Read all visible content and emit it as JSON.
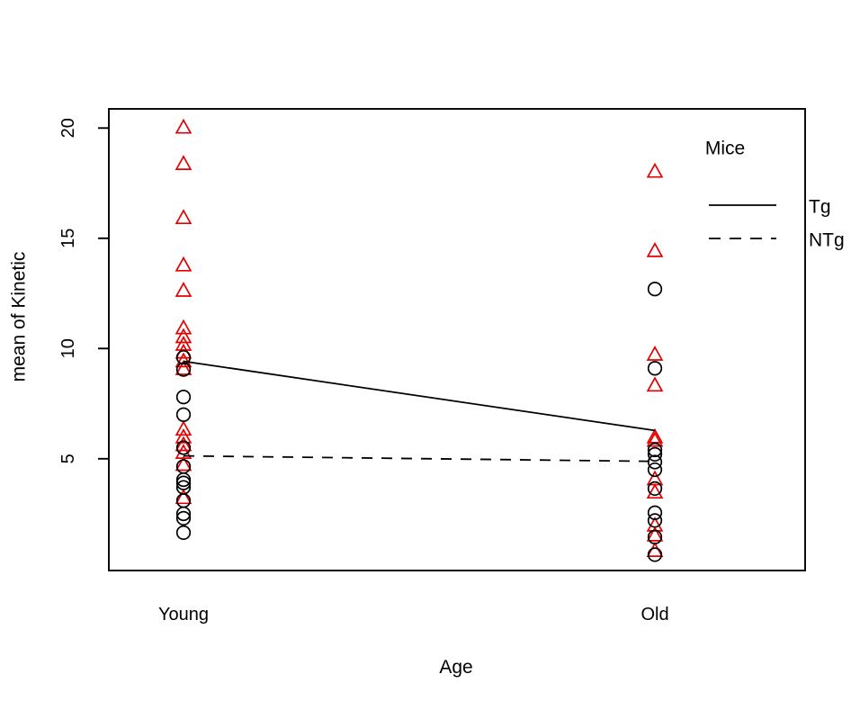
{
  "figure": {
    "background_color": "#ffffff",
    "axis_color": "#000000",
    "accent_color": "#e60000"
  },
  "chart_data": {
    "type": "scatter",
    "subtype": "interaction-plot",
    "title": "",
    "xlabel": "Age",
    "ylabel": "mean of Kinetic",
    "categories": [
      "Young",
      "Old"
    ],
    "yticks": [
      5,
      10,
      15,
      20
    ],
    "ylim": [
      -0.07,
      20.87
    ],
    "grid": false,
    "legend": {
      "title": "Mice",
      "position": "top-right",
      "entries": [
        {
          "label": "Tg",
          "line_style": "solid"
        },
        {
          "label": "NTg",
          "line_style": "dashed"
        }
      ]
    },
    "series": [
      {
        "name": "Tg",
        "marker": "triangle",
        "marker_color": "#e60000",
        "line_color": "#000000",
        "line_style": "solid",
        "means": [
          9.42,
          6.28
        ],
        "points": {
          "Young": [
            20.0,
            18.35,
            15.9,
            13.75,
            12.6,
            10.9,
            10.5,
            10.15,
            9.8,
            9.4,
            9.05,
            6.3,
            5.95,
            5.6,
            5.25,
            4.7,
            3.2
          ],
          "Old": [
            18.0,
            14.4,
            9.7,
            8.3,
            5.95,
            5.8,
            4.05,
            3.45,
            1.95,
            1.5,
            0.8
          ]
        }
      },
      {
        "name": "NTg",
        "marker": "circle",
        "marker_color": "#000000",
        "line_color": "#000000",
        "line_style": "dashed",
        "means": [
          5.13,
          4.88
        ],
        "points": {
          "Young": [
            9.6,
            9.05,
            7.8,
            7.0,
            5.5,
            4.65,
            4.05,
            3.9,
            3.7,
            3.1,
            2.5,
            2.3,
            1.65
          ],
          "Old": [
            12.7,
            9.1,
            5.4,
            5.2,
            4.85,
            4.5,
            3.65,
            2.55,
            2.2,
            1.45,
            0.65
          ]
        }
      }
    ]
  }
}
